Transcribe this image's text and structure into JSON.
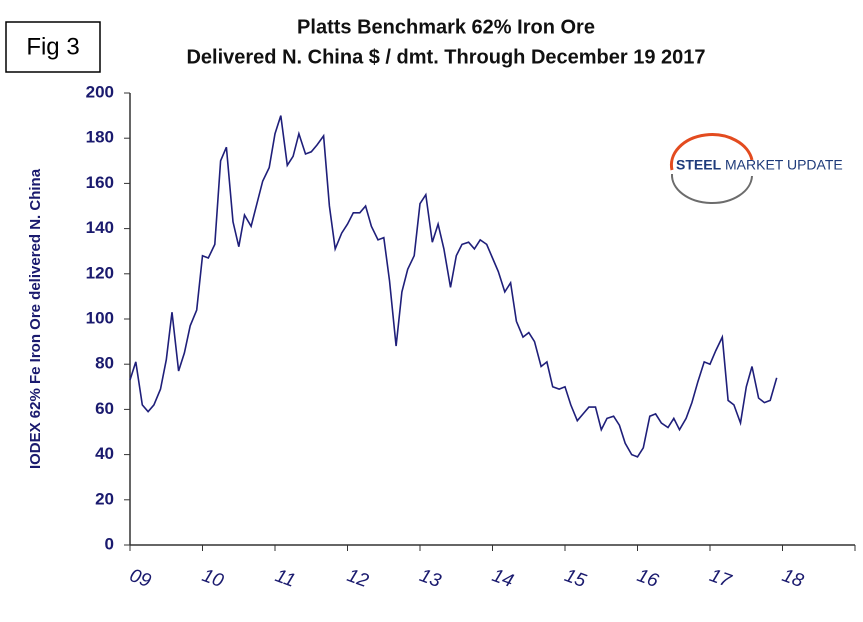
{
  "figure_label": "Fig 3",
  "logo": {
    "name": "STEEL",
    "rest": "MARKET UPDATE"
  },
  "chart_data": {
    "type": "line",
    "title": "Platts Benchmark 62% Iron Ore",
    "subtitle": "Delivered N. China $ / dmt. Through December 19 2017",
    "y_label": "IODEX 62% Fe Iron Ore delivered N. China",
    "xlim": [
      2009,
      2019
    ],
    "xticks": [
      {
        "value": 2009,
        "label": "09"
      },
      {
        "value": 2010,
        "label": "10"
      },
      {
        "value": 2011,
        "label": "11"
      },
      {
        "value": 2012,
        "label": "12"
      },
      {
        "value": 2013,
        "label": "13"
      },
      {
        "value": 2014,
        "label": "14"
      },
      {
        "value": 2015,
        "label": "15"
      },
      {
        "value": 2016,
        "label": "16"
      },
      {
        "value": 2017,
        "label": "17"
      },
      {
        "value": 2018,
        "label": "18"
      }
    ],
    "ylim": [
      0,
      200
    ],
    "yticks": [
      0,
      20,
      40,
      60,
      80,
      100,
      120,
      140,
      160,
      180,
      200
    ],
    "grid": false,
    "series": [
      {
        "name": "Iron Ore",
        "color": "#1f1f7a",
        "x": [
          2009,
          2009.08,
          2009.17,
          2009.25,
          2009.33,
          2009.42,
          2009.5,
          2009.58,
          2009.67,
          2009.75,
          2009.83,
          2009.92,
          2010,
          2010.08,
          2010.17,
          2010.25,
          2010.33,
          2010.42,
          2010.5,
          2010.58,
          2010.67,
          2010.75,
          2010.83,
          2010.92,
          2011,
          2011.08,
          2011.17,
          2011.25,
          2011.33,
          2011.42,
          2011.5,
          2011.58,
          2011.67,
          2011.75,
          2011.83,
          2011.92,
          2012,
          2012.08,
          2012.17,
          2012.25,
          2012.33,
          2012.42,
          2012.5,
          2012.58,
          2012.67,
          2012.75,
          2012.83,
          2012.92,
          2013,
          2013.08,
          2013.17,
          2013.25,
          2013.33,
          2013.42,
          2013.5,
          2013.58,
          2013.67,
          2013.75,
          2013.83,
          2013.92,
          2014,
          2014.08,
          2014.17,
          2014.25,
          2014.33,
          2014.42,
          2014.5,
          2014.58,
          2014.67,
          2014.75,
          2014.83,
          2014.92,
          2015,
          2015.08,
          2015.17,
          2015.25,
          2015.33,
          2015.42,
          2015.5,
          2015.58,
          2015.67,
          2015.75,
          2015.83,
          2015.92,
          2016,
          2016.08,
          2016.17,
          2016.25,
          2016.33,
          2016.42,
          2016.5,
          2016.58,
          2016.67,
          2016.75,
          2016.83,
          2016.92,
          2017,
          2017.08,
          2017.17,
          2017.25,
          2017.33,
          2017.42,
          2017.5,
          2017.58,
          2017.67,
          2017.75,
          2017.83,
          2017.92
        ],
        "values": [
          73,
          81,
          62,
          59,
          62,
          69,
          82,
          103,
          77,
          85,
          97,
          104,
          128,
          127,
          133,
          170,
          176,
          143,
          132,
          146,
          141,
          151,
          161,
          167,
          182,
          190,
          168,
          172,
          182,
          173,
          174,
          177,
          181,
          150,
          131,
          138,
          142,
          147,
          147,
          150,
          141,
          135,
          136,
          117,
          88,
          112,
          122,
          128,
          151,
          155,
          134,
          142,
          131,
          114,
          128,
          133,
          134,
          131,
          135,
          133,
          127,
          121,
          112,
          116,
          99,
          92,
          94,
          90,
          79,
          81,
          70,
          69,
          70,
          62,
          55,
          58,
          61,
          61,
          51,
          56,
          57,
          53,
          45,
          40,
          39,
          43,
          57,
          58,
          54,
          52,
          56,
          51,
          56,
          63,
          72,
          81,
          80,
          86,
          92,
          64,
          62,
          54,
          70,
          79,
          65,
          63,
          64,
          74
        ]
      }
    ]
  }
}
